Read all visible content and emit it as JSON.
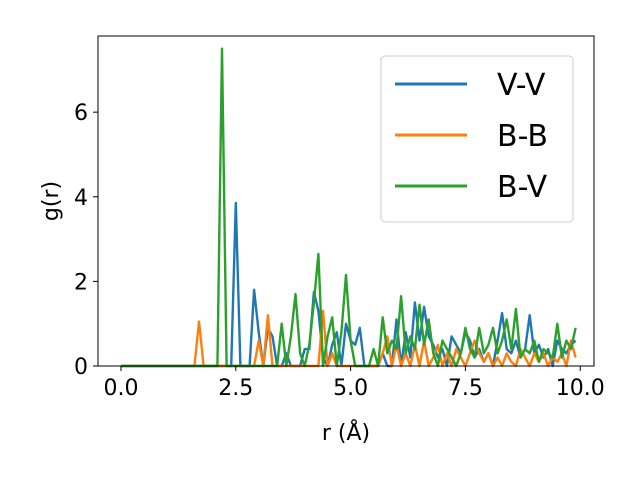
{
  "chart_data": {
    "type": "line",
    "xlabel": "r (Å)",
    "ylabel": "g(r)",
    "xlim": [
      -0.5,
      10.3
    ],
    "ylim": [
      0,
      7.8
    ],
    "xticks": [
      "0.0",
      "2.5",
      "5.0",
      "7.5",
      "10.0"
    ],
    "yticks": [
      "0",
      "2",
      "4",
      "6"
    ],
    "grid": false,
    "legend_position": "upper-right",
    "series": [
      {
        "name": "V-V",
        "color": "#1f77b4",
        "x": [
          0.0,
          2.3,
          2.4,
          2.5,
          2.6,
          2.7,
          2.8,
          2.9,
          3.0,
          3.1,
          3.2,
          3.3,
          3.4,
          3.5,
          3.6,
          3.7,
          3.8,
          3.9,
          4.0,
          4.1,
          4.2,
          4.3,
          4.4,
          4.5,
          4.6,
          4.7,
          4.8,
          4.9,
          5.0,
          5.1,
          5.2,
          5.3,
          5.4,
          5.5,
          5.6,
          5.7,
          5.8,
          5.9,
          6.0,
          6.1,
          6.2,
          6.3,
          6.4,
          6.5,
          6.6,
          6.7,
          6.8,
          6.9,
          7.0,
          7.1,
          7.2,
          7.3,
          7.4,
          7.5,
          7.6,
          7.7,
          7.8,
          7.9,
          8.0,
          8.1,
          8.2,
          8.3,
          8.4,
          8.5,
          8.6,
          8.7,
          8.8,
          8.9,
          9.0,
          9.1,
          9.2,
          9.3,
          9.4,
          9.5,
          9.6,
          9.7,
          9.8,
          9.9
        ],
        "y": [
          0,
          0,
          0,
          3.85,
          0,
          0,
          0,
          1.8,
          0.8,
          0,
          0.9,
          0.7,
          0,
          0,
          0.3,
          0,
          0,
          0,
          0.4,
          0.4,
          1.75,
          1.3,
          0.2,
          0,
          0.5,
          0.8,
          0,
          1.0,
          0.6,
          0.5,
          0.9,
          0,
          0,
          0,
          0,
          0.3,
          0,
          0,
          1.1,
          0,
          0.8,
          0.2,
          1.5,
          0.6,
          1.4,
          0.7,
          0.5,
          0.2,
          0.4,
          0,
          0.7,
          0.5,
          0.3,
          0.8,
          0.6,
          0.2,
          0.4,
          0.1,
          0.3,
          0,
          0.6,
          1.25,
          0.4,
          0.3,
          0.6,
          0.2,
          0.4,
          1.2,
          0.3,
          0.5,
          0.2,
          0.4,
          0,
          0.6,
          0.4,
          0.3,
          0.5,
          0.6
        ]
      },
      {
        "name": "B-B",
        "color": "#ff7f0e",
        "x": [
          0.0,
          1.5,
          1.6,
          1.7,
          1.8,
          1.9,
          2.9,
          3.0,
          3.1,
          3.2,
          3.3,
          3.4,
          4.3,
          4.4,
          4.5,
          4.6,
          4.7,
          5.5,
          5.6,
          5.7,
          5.8,
          5.9,
          6.0,
          6.1,
          6.2,
          6.3,
          6.4,
          6.5,
          6.6,
          6.7,
          6.8,
          6.9,
          7.0,
          7.1,
          7.2,
          7.3,
          7.4,
          7.5,
          7.6,
          7.7,
          7.8,
          7.9,
          8.0,
          8.1,
          8.2,
          8.3,
          8.4,
          8.5,
          8.6,
          8.7,
          8.8,
          8.9,
          9.0,
          9.1,
          9.2,
          9.3,
          9.4,
          9.5,
          9.6,
          9.7,
          9.8,
          9.9
        ],
        "y": [
          0,
          0,
          0,
          1.05,
          0,
          0,
          0,
          0.6,
          0,
          1.2,
          0,
          0,
          0,
          1.3,
          0,
          0.3,
          0,
          0,
          0,
          0.3,
          0.7,
          0,
          0.5,
          0,
          0.3,
          0,
          0.5,
          0,
          0.6,
          0,
          0.2,
          0.5,
          0,
          0.3,
          0,
          0.4,
          0.2,
          0,
          0.3,
          0.6,
          0.3,
          0.1,
          0.3,
          0,
          0.2,
          0,
          0.3,
          0.1,
          0,
          0.4,
          0.2,
          0,
          0.3,
          0.1,
          0.3,
          0,
          0.2,
          0.1,
          0.3,
          0,
          0.6,
          0.2
        ]
      },
      {
        "name": "B-V",
        "color": "#2ca02c",
        "x": [
          0.0,
          2.0,
          2.1,
          2.2,
          2.3,
          2.4,
          3.4,
          3.5,
          3.6,
          3.7,
          3.8,
          3.9,
          4.0,
          4.1,
          4.2,
          4.3,
          4.4,
          4.5,
          4.6,
          4.7,
          4.8,
          4.9,
          5.0,
          5.1,
          5.4,
          5.5,
          5.6,
          5.7,
          5.8,
          5.9,
          6.0,
          6.1,
          6.2,
          6.3,
          6.4,
          6.5,
          6.6,
          6.7,
          6.8,
          6.9,
          7.0,
          7.1,
          7.2,
          7.3,
          7.4,
          7.5,
          7.6,
          7.7,
          7.8,
          7.9,
          8.0,
          8.1,
          8.2,
          8.3,
          8.4,
          8.5,
          8.6,
          8.7,
          8.8,
          8.9,
          9.0,
          9.1,
          9.2,
          9.3,
          9.4,
          9.5,
          9.6,
          9.7,
          9.8,
          9.9
        ],
        "y": [
          0,
          0,
          0,
          7.5,
          0,
          0,
          0,
          1.0,
          0,
          0.7,
          1.7,
          0.3,
          0,
          0.5,
          1.5,
          2.65,
          0,
          0.7,
          1.15,
          0,
          0.8,
          2.15,
          0.6,
          0,
          0,
          0.4,
          0,
          1.15,
          0.3,
          0.6,
          0.4,
          1.65,
          0.3,
          0.7,
          0.4,
          1.45,
          0.5,
          1.1,
          0.3,
          0,
          0.6,
          0.4,
          0.2,
          0,
          0.3,
          0.9,
          0.4,
          0.2,
          0.9,
          0.3,
          0.5,
          0.9,
          0.3,
          0.6,
          1.1,
          0.4,
          1.35,
          0.2,
          0.4,
          0.3,
          0.6,
          0.1,
          0.4,
          0.3,
          0.2,
          1.0,
          0.2,
          0.6,
          0.4,
          0.9
        ]
      }
    ]
  }
}
